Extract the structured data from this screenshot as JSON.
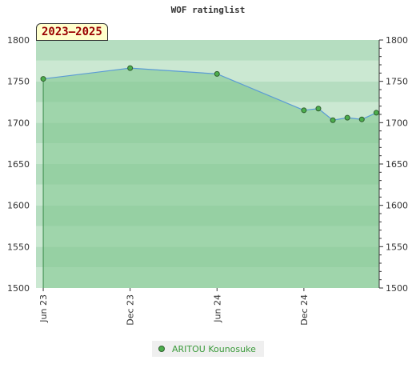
{
  "chart_data": {
    "type": "area",
    "title": "WOF ratinglist",
    "period_label": "2023–2025",
    "ylim": [
      1500,
      1800
    ],
    "y_ticks": [
      1500,
      1550,
      1600,
      1650,
      1700,
      1750,
      1800
    ],
    "x_tick_labels": [
      "Jun 23",
      "Dec 23",
      "Jun 24",
      "Dec 24"
    ],
    "x_tick_positions": [
      0,
      6,
      12,
      18
    ],
    "x_range": [
      -0.5,
      23.2
    ],
    "grid": true,
    "legend_position": "bottom-center",
    "series": [
      {
        "name": "ARITOU Kounosuke",
        "x": [
          0,
          6,
          12,
          18,
          19,
          20,
          21,
          22,
          23
        ],
        "y": [
          1753,
          1766,
          1759,
          1715,
          1717,
          1703,
          1706,
          1704,
          1712
        ]
      }
    ],
    "colors": {
      "line": "#5b9bd5",
      "area": "#7cc48a",
      "marker": "#4cae4c",
      "band_a": "#cbe8d2",
      "band_b": "#b5ddc0"
    }
  }
}
